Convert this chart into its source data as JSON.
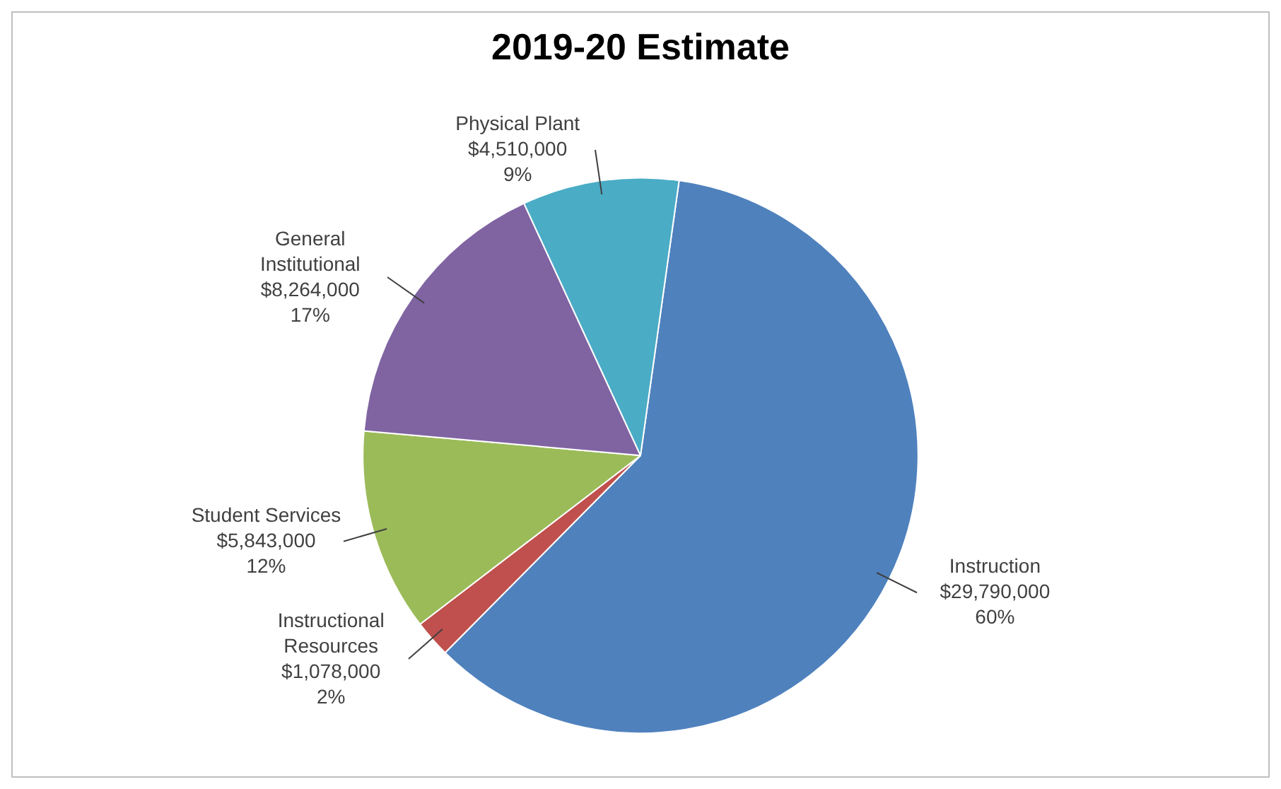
{
  "chart_data": {
    "type": "pie",
    "title": "2019-20 Estimate",
    "categories": [
      "Instruction",
      "Instructional Resources",
      "Student Services",
      "General Institutional",
      "Physical Plant"
    ],
    "values": [
      29790000,
      1078000,
      5843000,
      8264000,
      4510000
    ],
    "colors": [
      "#4f81bd",
      "#c0504d",
      "#9bbb59",
      "#8064a2",
      "#4bacc6"
    ],
    "value_labels": [
      "$29,790,000\n60%",
      "$1,078,000\n2%",
      "$5,843,000\n12%",
      "$8,264,000\n17%",
      "$4,510,000\n9%"
    ],
    "legend": false
  }
}
